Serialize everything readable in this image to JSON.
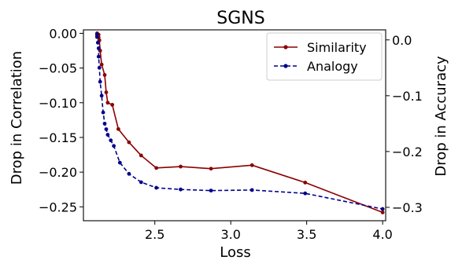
{
  "chart_data": {
    "type": "line",
    "title": "SGNS",
    "xlabel": "Loss",
    "ylabel_left": "Drop in Correlation",
    "ylabel_right": "Drop in Accuracy",
    "xlim": [
      2.03,
      4.02
    ],
    "ylim_left": [
      -0.27,
      0.005
    ],
    "ylim_right": [
      -0.324,
      0.018
    ],
    "x_ticks": [
      2.5,
      3.0,
      3.5,
      4.0
    ],
    "x_tick_labels": [
      "2.5",
      "3.0",
      "3.5",
      "4.0"
    ],
    "y_left_ticks": [
      0.0,
      -0.05,
      -0.1,
      -0.15,
      -0.2,
      -0.25
    ],
    "y_left_tick_labels": [
      "0.00",
      "−0.05",
      "−0.10",
      "−0.15",
      "−0.20",
      "−0.25"
    ],
    "y_right_ticks": [
      0.0,
      -0.1,
      -0.2,
      -0.3
    ],
    "y_right_tick_labels": [
      "0.0",
      "−0.1",
      "−0.2",
      "−0.3"
    ],
    "grid": false,
    "legend": {
      "placement": "top-right",
      "entries": [
        "Similarity",
        "Analogy"
      ]
    },
    "series": [
      {
        "name": "Similarity",
        "axis": "left",
        "color": "#8b0000",
        "linestyle": "solid",
        "x": [
          2.12,
          2.12,
          2.125,
          2.13,
          2.13,
          2.135,
          2.14,
          2.15,
          2.17,
          2.18,
          2.19,
          2.22,
          2.26,
          2.33,
          2.41,
          2.51,
          2.67,
          2.87,
          3.14,
          3.49,
          4.0
        ],
        "y": [
          0.0,
          -0.003,
          -0.005,
          -0.002,
          -0.006,
          -0.01,
          -0.025,
          -0.045,
          -0.06,
          -0.085,
          -0.1,
          -0.103,
          -0.138,
          -0.157,
          -0.176,
          -0.194,
          -0.192,
          -0.195,
          -0.19,
          -0.215,
          -0.258
        ]
      },
      {
        "name": "Analogy",
        "axis": "right",
        "color": "#00008b",
        "linestyle": "dashed",
        "x": [
          2.12,
          2.12,
          2.125,
          2.13,
          2.13,
          2.135,
          2.14,
          2.15,
          2.16,
          2.17,
          2.18,
          2.19,
          2.21,
          2.23,
          2.27,
          2.33,
          2.41,
          2.51,
          2.67,
          2.87,
          3.14,
          3.49,
          4.0
        ],
        "y": [
          0.01,
          0.005,
          -0.005,
          -0.015,
          -0.03,
          -0.05,
          -0.075,
          -0.1,
          -0.13,
          -0.15,
          -0.16,
          -0.17,
          -0.18,
          -0.19,
          -0.22,
          -0.24,
          -0.255,
          -0.265,
          -0.268,
          -0.27,
          -0.269,
          -0.275,
          -0.303
        ]
      }
    ]
  }
}
